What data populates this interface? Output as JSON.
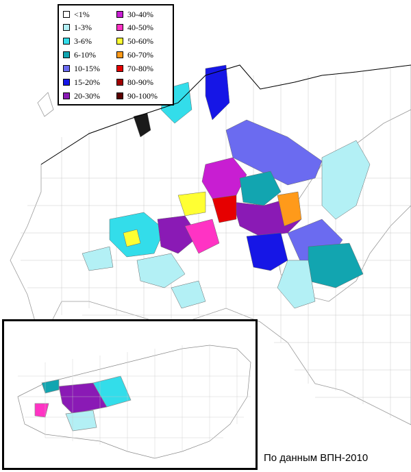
{
  "legend": {
    "items": [
      {
        "label": "<1%",
        "color": "#ffffff"
      },
      {
        "label": "1-3%",
        "color": "#b3f0f5"
      },
      {
        "label": "3-6%",
        "color": "#33ddea"
      },
      {
        "label": "6-10%",
        "color": "#12a5b0"
      },
      {
        "label": "10-15%",
        "color": "#6b6bf0"
      },
      {
        "label": "15-20%",
        "color": "#1616e6"
      },
      {
        "label": "20-30%",
        "color": "#8a1ab5"
      },
      {
        "label": "30-40%",
        "color": "#c81ed2"
      },
      {
        "label": "40-50%",
        "color": "#ff33c4"
      },
      {
        "label": "50-60%",
        "color": "#ffff33"
      },
      {
        "label": "60-70%",
        "color": "#ff9a1a"
      },
      {
        "label": "70-80%",
        "color": "#e60000"
      },
      {
        "label": "80-90%",
        "color": "#a00000"
      },
      {
        "label": "90-100%",
        "color": "#5a0000"
      }
    ]
  },
  "source_note": "По данным ВПН-2010"
}
